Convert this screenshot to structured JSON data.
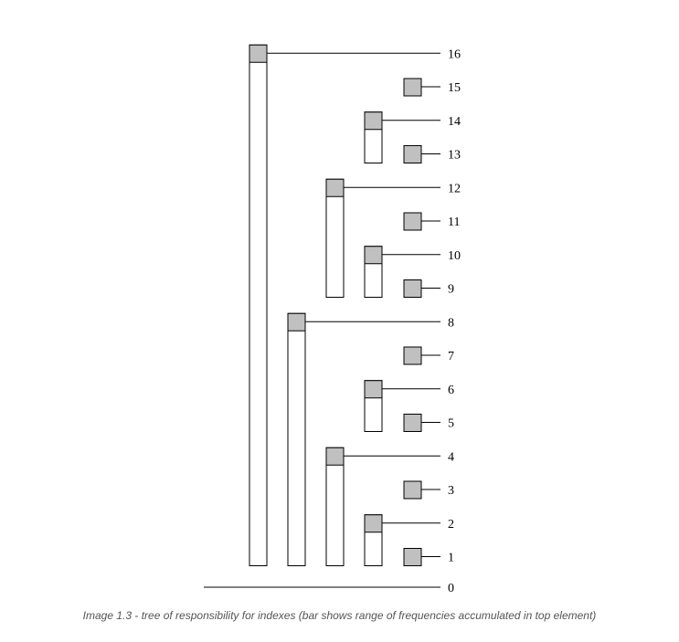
{
  "diagram": {
    "caption": "Image 1.3 - tree of responsibility for indexes (bar shows range of frequencies accumulated in top element)",
    "colors": {
      "head_fill": "#c0c0c0",
      "bar_fill": "#ffffff",
      "stroke": "#000000"
    },
    "axis_label": "0",
    "nodes": [
      {
        "index": 1,
        "label": "1",
        "range_start": 1,
        "range_end": 1
      },
      {
        "index": 2,
        "label": "2",
        "range_start": 1,
        "range_end": 2
      },
      {
        "index": 3,
        "label": "3",
        "range_start": 3,
        "range_end": 3
      },
      {
        "index": 4,
        "label": "4",
        "range_start": 1,
        "range_end": 4
      },
      {
        "index": 5,
        "label": "5",
        "range_start": 5,
        "range_end": 5
      },
      {
        "index": 6,
        "label": "6",
        "range_start": 5,
        "range_end": 6
      },
      {
        "index": 7,
        "label": "7",
        "range_start": 7,
        "range_end": 7
      },
      {
        "index": 8,
        "label": "8",
        "range_start": 1,
        "range_end": 8
      },
      {
        "index": 9,
        "label": "9",
        "range_start": 9,
        "range_end": 9
      },
      {
        "index": 10,
        "label": "10",
        "range_start": 9,
        "range_end": 10
      },
      {
        "index": 11,
        "label": "11",
        "range_start": 11,
        "range_end": 11
      },
      {
        "index": 12,
        "label": "12",
        "range_start": 9,
        "range_end": 12
      },
      {
        "index": 13,
        "label": "13",
        "range_start": 13,
        "range_end": 13
      },
      {
        "index": 14,
        "label": "14",
        "range_start": 13,
        "range_end": 14
      },
      {
        "index": 15,
        "label": "15",
        "range_start": 15,
        "range_end": 15
      },
      {
        "index": 16,
        "label": "16",
        "range_start": 1,
        "range_end": 16
      }
    ]
  }
}
